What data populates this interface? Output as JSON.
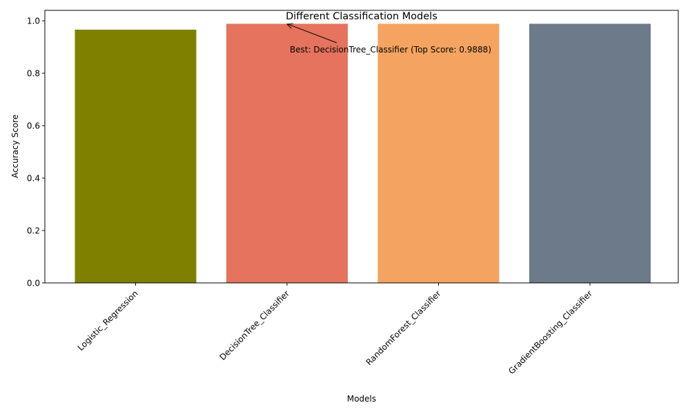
{
  "chart_data": {
    "type": "bar",
    "title": "Different Classification Models",
    "xlabel": "Models",
    "ylabel": "Accuracy Score",
    "categories": [
      "Logistic_Regression",
      "DecisionTree_Classifier",
      "RandomForest_Classifier",
      "GradientBoosting_Classifier"
    ],
    "values": [
      0.9663,
      0.9888,
      0.9888,
      0.9888
    ],
    "colors": [
      "#808000",
      "#e5735e",
      "#f4a460",
      "#6c7a89"
    ],
    "ylim": [
      0,
      1.04
    ],
    "yticks": [
      0.0,
      0.2,
      0.4,
      0.6,
      0.8,
      1.0
    ],
    "ytick_labels": [
      "0.0",
      "0.2",
      "0.4",
      "0.6",
      "0.8",
      "1.0"
    ],
    "grid": false,
    "xtick_rotation": 45,
    "annotation": {
      "text": "Best: DecisionTree_Classifier  (Top Score: 0.9888)",
      "target_category": "DecisionTree_Classifier",
      "target_value": 0.9888
    }
  }
}
